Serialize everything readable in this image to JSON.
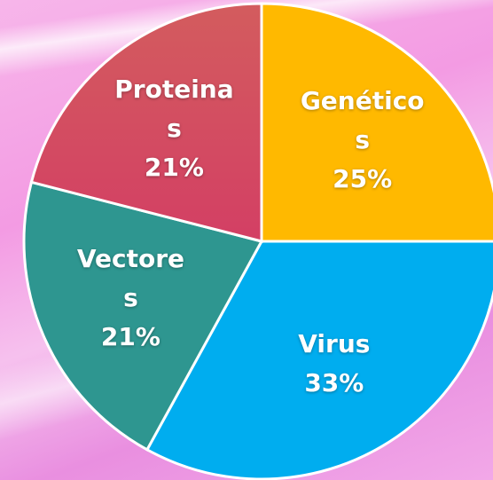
{
  "chart_data": {
    "type": "pie",
    "categories": [
      "Genéticos",
      "Virus",
      "Vectores",
      "Proteinas"
    ],
    "values": [
      25,
      33,
      21,
      21
    ],
    "value_labels": [
      "25%",
      "33%",
      "21%",
      "21%"
    ],
    "colors": [
      "#ffb900",
      "#00adef",
      "#2e9690",
      "#d64a62"
    ],
    "start_angle": 0,
    "direction": "clockwise"
  }
}
